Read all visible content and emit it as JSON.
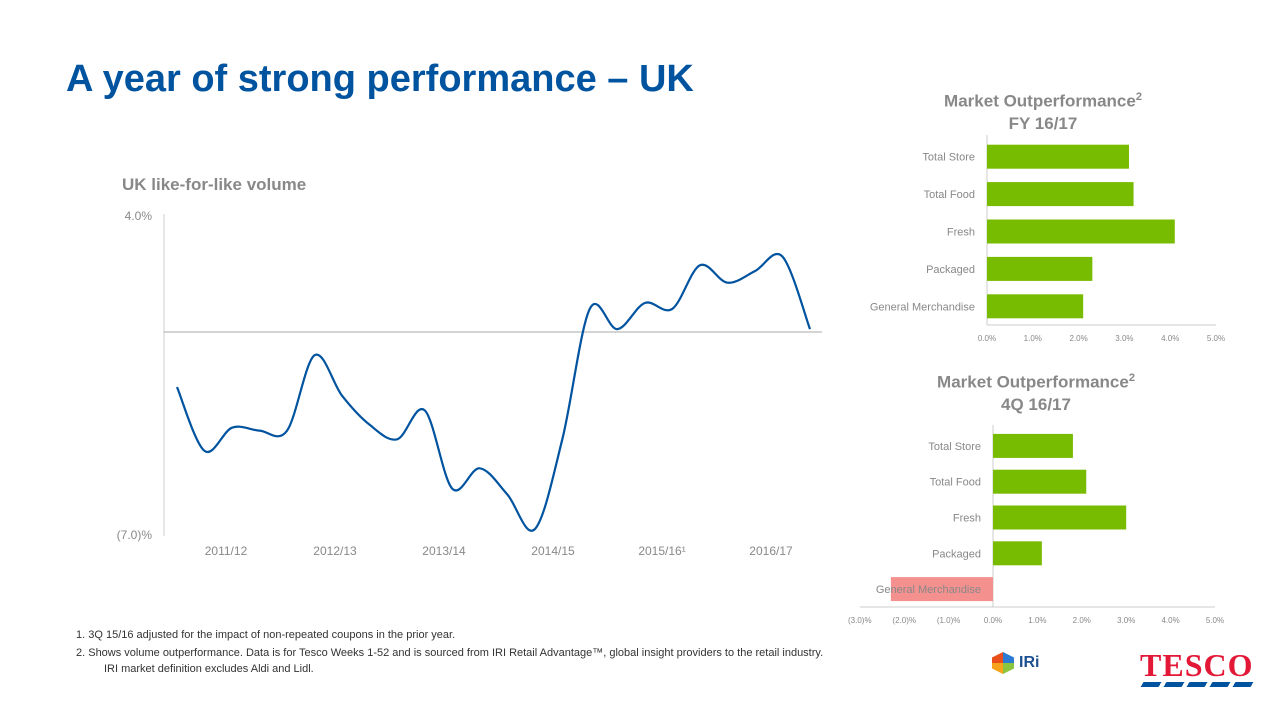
{
  "title": "A year of strong performance – UK",
  "footnotes": [
    "1.   3Q 15/16 adjusted for the impact of non-repeated coupons in the prior year.",
    "2.   Shows volume outperformance. Data is for Tesco Weeks 1-52 and is sourced from IRI Retail Advantage™, global insight providers to the retail industry.",
    "IRI market definition excludes Aldi and Lidl."
  ],
  "logos": {
    "iri": "IRi",
    "tesco": "TESCO"
  },
  "colors": {
    "title": "#00539f",
    "line": "#00539f",
    "positive": "#77bc00",
    "negative": "#f4918f"
  },
  "chart_data": [
    {
      "type": "line",
      "title": "UK like-for-like volume",
      "ylim": [
        -7,
        4
      ],
      "ytick_labels": [
        "4.0%",
        "(7.0)%"
      ],
      "xtick_labels": [
        "2011/12",
        "2012/13",
        "2013/14",
        "2014/15",
        "2015/16¹",
        "2016/17"
      ],
      "values": [
        -1.9,
        -4.1,
        -3.3,
        -3.4,
        -3.4,
        -0.8,
        -2.2,
        -3.2,
        -3.7,
        -2.7,
        -5.4,
        -4.7,
        -5.6,
        -6.8,
        -3.7,
        0.8,
        0.1,
        1.0,
        0.8,
        2.3,
        1.7,
        2.1,
        2.6,
        0.1
      ]
    },
    {
      "type": "bar",
      "orientation": "horizontal",
      "title": "Market Outperformance",
      "title_sup": "2",
      "subtitle": "FY 16/17",
      "categories": [
        "Total Store",
        "Total Food",
        "Fresh",
        "Packaged",
        "General Merchandise"
      ],
      "values": [
        3.1,
        3.2,
        4.1,
        2.3,
        2.1
      ],
      "xlim": [
        0,
        5
      ],
      "xtick_labels": [
        "0.0%",
        "1.0%",
        "2.0%",
        "3.0%",
        "4.0%",
        "5.0%"
      ]
    },
    {
      "type": "bar",
      "orientation": "horizontal",
      "title": "Market Outperformance",
      "title_sup": "2",
      "subtitle": "4Q 16/17",
      "categories": [
        "Total Store",
        "Total Food",
        "Fresh",
        "Packaged",
        "General Merchandise"
      ],
      "values": [
        1.8,
        2.1,
        3.0,
        1.1,
        -2.3
      ],
      "xlim": [
        -3,
        5
      ],
      "xtick_labels": [
        "(3.0)%",
        "(2.0)%",
        "(1.0)%",
        "0.0%",
        "1.0%",
        "2.0%",
        "3.0%",
        "4.0%",
        "5.0%"
      ]
    }
  ]
}
